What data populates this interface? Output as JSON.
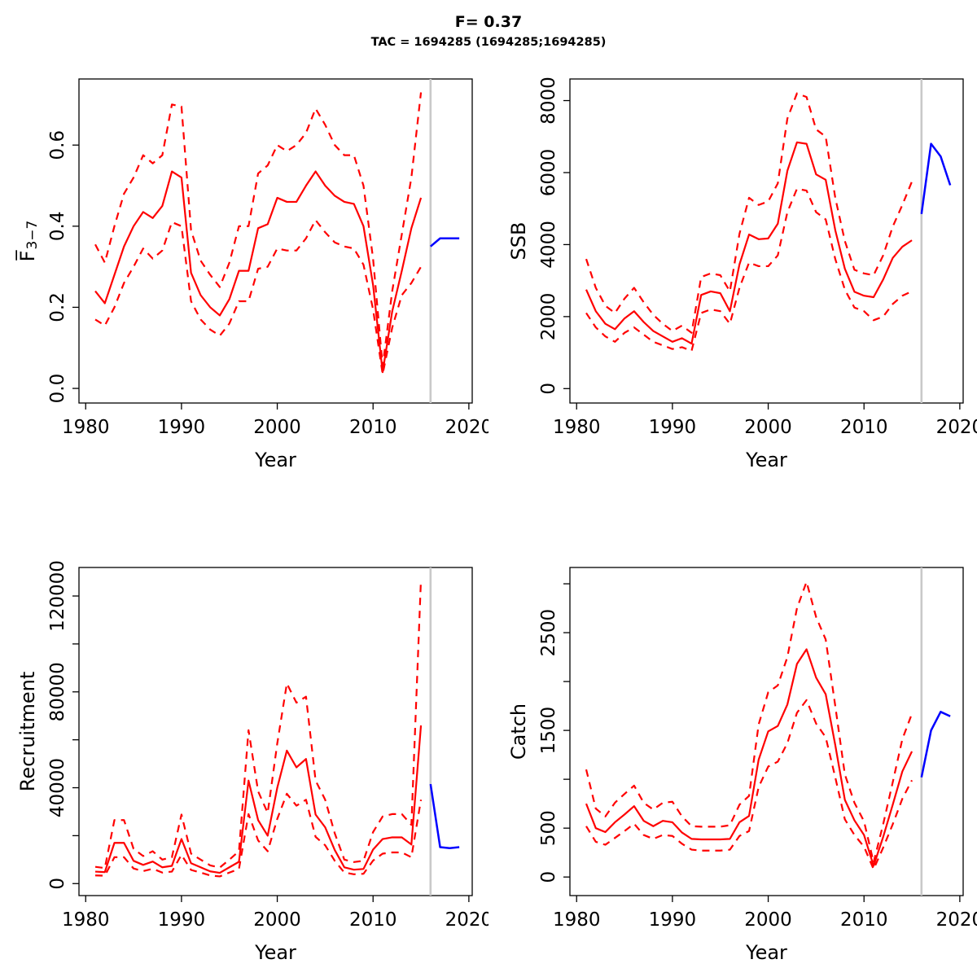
{
  "title": {
    "line1": "F= 0.37",
    "line2": "TAC = 1694285 (1694285;1694285)"
  },
  "colors": {
    "estimate": "#ff0000",
    "forecast": "#0000ff",
    "divider": "#c9c9c9",
    "axis": "#000000",
    "background": "#ffffff"
  },
  "x_axis": {
    "label": "Year",
    "ticks": [
      1980,
      1990,
      2000,
      2010,
      2020
    ],
    "xlim": [
      1979.3,
      2020.35
    ],
    "divider_year": 2016
  },
  "years_estimate": [
    1981,
    1982,
    1983,
    1984,
    1985,
    1986,
    1987,
    1988,
    1989,
    1990,
    1991,
    1992,
    1993,
    1994,
    1995,
    1996,
    1997,
    1998,
    1999,
    2000,
    2001,
    2002,
    2003,
    2004,
    2005,
    2006,
    2007,
    2008,
    2009,
    2010,
    2011,
    2012,
    2013,
    2014,
    2015
  ],
  "years_forecast": [
    2016,
    2017,
    2018,
    2019
  ],
  "chart_data": [
    {
      "key": "fbar",
      "type": "line",
      "position": "top-left",
      "ylabel": {
        "main": "F̅",
        "sub": "3−7"
      },
      "xlabel": "Year",
      "ylim": [
        -0.036,
        0.763
      ],
      "grid": false,
      "yticks": {
        "values": [
          0,
          0.2,
          0.4,
          0.6
        ],
        "labels": [
          "0.0",
          "0.2",
          "0.4",
          "0.6"
        ]
      },
      "series": [
        {
          "name": "estimate",
          "style": "solid",
          "color": "#ff0000",
          "x": "estimate",
          "values": [
            0.24,
            0.21,
            0.28,
            0.35,
            0.4,
            0.435,
            0.42,
            0.45,
            0.535,
            0.52,
            0.285,
            0.23,
            0.2,
            0.18,
            0.22,
            0.29,
            0.29,
            0.395,
            0.405,
            0.47,
            0.46,
            0.46,
            0.5,
            0.535,
            0.5,
            0.475,
            0.46,
            0.455,
            0.4,
            0.255,
            0.04,
            0.19,
            0.29,
            0.395,
            0.47
          ]
        },
        {
          "name": "upper-ci",
          "style": "dashed",
          "color": "#ff0000",
          "x": "estimate",
          "values": [
            0.355,
            0.31,
            0.4,
            0.48,
            0.52,
            0.575,
            0.555,
            0.575,
            0.7,
            0.695,
            0.39,
            0.315,
            0.28,
            0.25,
            0.31,
            0.4,
            0.4,
            0.53,
            0.55,
            0.6,
            0.585,
            0.6,
            0.63,
            0.69,
            0.65,
            0.6,
            0.575,
            0.575,
            0.5,
            0.32,
            0.055,
            0.24,
            0.38,
            0.52,
            0.73
          ]
        },
        {
          "name": "lower-ci",
          "style": "dashed",
          "color": "#ff0000",
          "x": "estimate",
          "values": [
            0.17,
            0.155,
            0.2,
            0.26,
            0.3,
            0.345,
            0.32,
            0.34,
            0.41,
            0.4,
            0.215,
            0.17,
            0.145,
            0.13,
            0.16,
            0.215,
            0.215,
            0.295,
            0.3,
            0.345,
            0.34,
            0.34,
            0.37,
            0.415,
            0.385,
            0.36,
            0.35,
            0.345,
            0.305,
            0.195,
            0.035,
            0.15,
            0.23,
            0.26,
            0.3
          ]
        },
        {
          "name": "forecast",
          "style": "solid",
          "color": "#0000ff",
          "x": "forecast",
          "values": [
            0.35,
            0.37,
            0.37,
            0.37
          ]
        }
      ]
    },
    {
      "key": "ssb",
      "type": "line",
      "position": "top-right",
      "ylabel": {
        "main": "SSB",
        "sub": ""
      },
      "xlabel": "Year",
      "ylim": [
        -400,
        8600
      ],
      "grid": false,
      "yticks": {
        "values": [
          0,
          2000,
          4000,
          6000,
          8000
        ],
        "labels": [
          "0",
          "2000",
          "4000",
          "6000",
          "8000"
        ]
      },
      "series": [
        {
          "name": "estimate",
          "style": "solid",
          "color": "#ff0000",
          "x": "estimate",
          "values": [
            2750,
            2150,
            1800,
            1650,
            1950,
            2150,
            1850,
            1600,
            1450,
            1300,
            1400,
            1250,
            2600,
            2700,
            2650,
            2150,
            3450,
            4280,
            4150,
            4170,
            4580,
            6050,
            6840,
            6800,
            5950,
            5800,
            4400,
            3330,
            2690,
            2580,
            2540,
            3030,
            3630,
            3940,
            4120
          ]
        },
        {
          "name": "upper-ci",
          "style": "dashed",
          "color": "#ff0000",
          "x": "estimate",
          "values": [
            3600,
            2800,
            2300,
            2100,
            2500,
            2800,
            2400,
            2050,
            1800,
            1600,
            1750,
            1550,
            3100,
            3200,
            3150,
            2700,
            4300,
            5300,
            5100,
            5200,
            5700,
            7500,
            8200,
            8100,
            7200,
            7000,
            5300,
            4100,
            3300,
            3200,
            3150,
            3700,
            4500,
            5100,
            5750
          ]
        },
        {
          "name": "lower-ci",
          "style": "dashed",
          "color": "#ff0000",
          "x": "estimate",
          "values": [
            2100,
            1700,
            1450,
            1300,
            1550,
            1700,
            1500,
            1300,
            1200,
            1100,
            1150,
            1050,
            2100,
            2200,
            2150,
            1800,
            2800,
            3500,
            3400,
            3400,
            3700,
            4900,
            5550,
            5500,
            4900,
            4700,
            3600,
            2750,
            2250,
            2150,
            1900,
            2000,
            2350,
            2580,
            2700
          ]
        },
        {
          "name": "forecast",
          "style": "solid",
          "color": "#0000ff",
          "x": "forecast",
          "values": [
            4850,
            6800,
            6450,
            5650
          ]
        }
      ]
    },
    {
      "key": "recruitment",
      "type": "line",
      "position": "bottom-left",
      "ylabel": {
        "main": "Recruitment",
        "sub": ""
      },
      "xlabel": "Year",
      "ylim": [
        -5000,
        131900
      ],
      "grid": false,
      "yticks": {
        "values": [
          0,
          20000,
          40000,
          60000,
          80000,
          100000,
          120000
        ],
        "labels": [
          "0",
          "",
          "40000",
          "",
          "80000",
          "",
          "120000"
        ]
      },
      "series": [
        {
          "name": "estimate",
          "style": "solid",
          "color": "#ff0000",
          "x": "estimate",
          "values": [
            5000,
            4800,
            17000,
            17000,
            9500,
            7800,
            9200,
            6800,
            7400,
            18600,
            8500,
            6800,
            5100,
            4500,
            6800,
            9100,
            43000,
            26500,
            20000,
            40000,
            55500,
            48500,
            52000,
            28800,
            23500,
            14000,
            6800,
            5800,
            6100,
            14200,
            18600,
            19300,
            19300,
            16300,
            66000
          ]
        },
        {
          "name": "upper-ci",
          "style": "dashed",
          "color": "#ff0000",
          "x": "estimate",
          "values": [
            7000,
            6500,
            26500,
            26500,
            14500,
            11500,
            13500,
            10000,
            11000,
            28800,
            12500,
            10000,
            7600,
            6700,
            10000,
            13500,
            64000,
            38500,
            29500,
            58500,
            83500,
            75500,
            78000,
            43000,
            35000,
            21000,
            10000,
            9000,
            9500,
            21500,
            28000,
            29000,
            29000,
            24500,
            127000
          ]
        },
        {
          "name": "lower-ci",
          "style": "dashed",
          "color": "#ff0000",
          "x": "estimate",
          "values": [
            3400,
            3300,
            11000,
            11000,
            6300,
            5200,
            6200,
            4600,
            5000,
            12000,
            5700,
            4600,
            3400,
            3000,
            4600,
            6100,
            29000,
            18000,
            13500,
            27000,
            37500,
            32500,
            35000,
            19500,
            16000,
            9500,
            4600,
            3900,
            4100,
            9600,
            12500,
            13000,
            13000,
            11000,
            35000
          ]
        },
        {
          "name": "forecast",
          "style": "solid",
          "color": "#0000ff",
          "x": "forecast",
          "values": [
            41500,
            15200,
            14800,
            15200
          ]
        }
      ]
    },
    {
      "key": "catch",
      "type": "line",
      "position": "bottom-right",
      "ylabel": {
        "main": "Catch",
        "sub": ""
      },
      "xlabel": "Year",
      "ylim": [
        -190,
        3167
      ],
      "grid": false,
      "yticks": {
        "values": [
          0,
          500,
          1000,
          1500,
          2000,
          2500,
          3000
        ],
        "labels": [
          "0",
          "500",
          "",
          "1500",
          "",
          "2500",
          ""
        ]
      },
      "series": [
        {
          "name": "estimate",
          "style": "solid",
          "color": "#ff0000",
          "x": "estimate",
          "values": [
            750,
            500,
            460,
            560,
            640,
            725,
            575,
            520,
            575,
            560,
            455,
            390,
            385,
            385,
            385,
            390,
            560,
            625,
            1200,
            1490,
            1545,
            1765,
            2180,
            2330,
            2040,
            1870,
            1350,
            790,
            580,
            430,
            115,
            410,
            740,
            1080,
            1285
          ]
        },
        {
          "name": "upper-ci",
          "style": "dashed",
          "color": "#ff0000",
          "x": "estimate",
          "values": [
            1100,
            700,
            620,
            760,
            850,
            935,
            760,
            690,
            760,
            770,
            620,
            520,
            515,
            515,
            515,
            530,
            740,
            830,
            1560,
            1890,
            1960,
            2250,
            2750,
            3020,
            2660,
            2430,
            1750,
            1050,
            760,
            570,
            150,
            540,
            970,
            1410,
            1670
          ]
        },
        {
          "name": "lower-ci",
          "style": "dashed",
          "color": "#ff0000",
          "x": "estimate",
          "values": [
            520,
            360,
            330,
            400,
            470,
            545,
            430,
            390,
            430,
            420,
            340,
            280,
            270,
            270,
            270,
            280,
            420,
            470,
            920,
            1130,
            1180,
            1370,
            1680,
            1810,
            1570,
            1430,
            1020,
            590,
            430,
            310,
            80,
            300,
            540,
            800,
            990
          ]
        },
        {
          "name": "forecast",
          "style": "solid",
          "color": "#0000ff",
          "x": "forecast",
          "values": [
            1020,
            1500,
            1690,
            1645
          ]
        }
      ]
    }
  ]
}
